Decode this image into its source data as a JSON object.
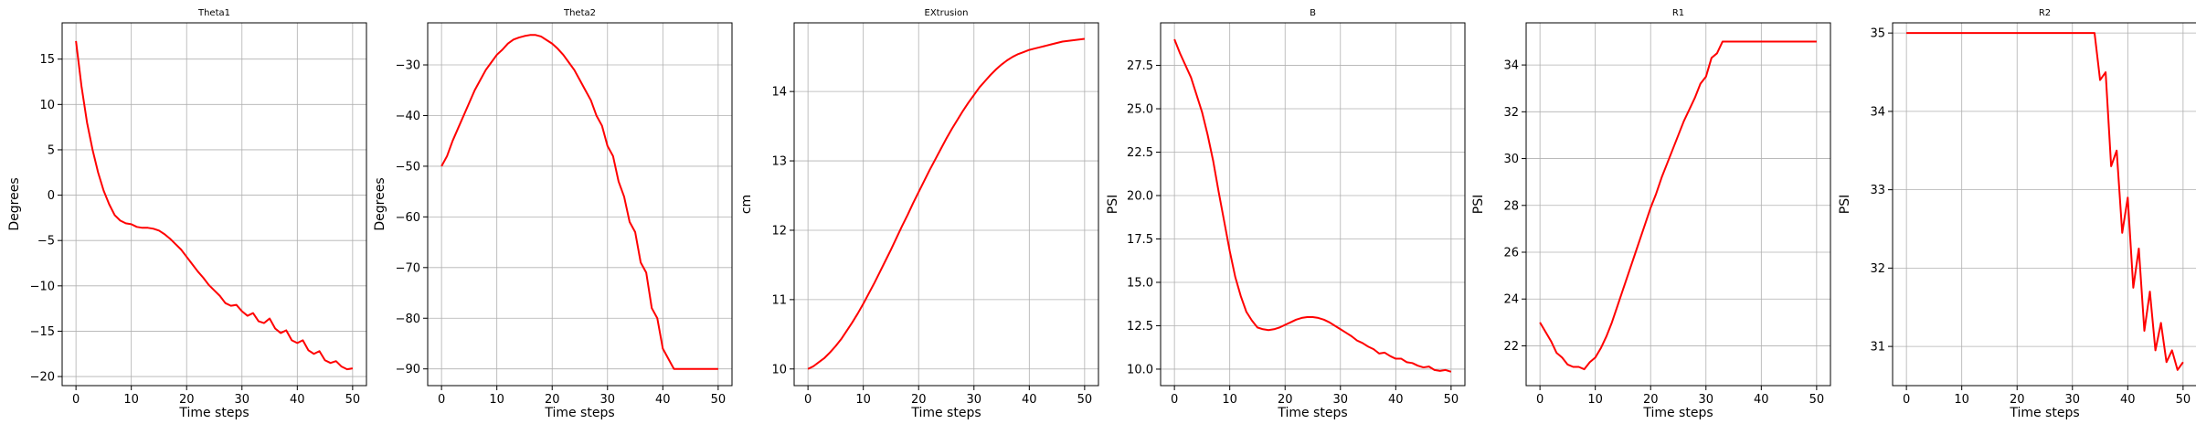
{
  "chart_data": [
    {
      "type": "line",
      "title": "Theta1",
      "xlabel": "Time steps",
      "ylabel": "Degrees",
      "xlim": [
        -2.5,
        52.5
      ],
      "ylim": [
        -21,
        19
      ],
      "xticks": [
        0,
        10,
        20,
        30,
        40,
        50
      ],
      "xtick_labels": [
        "0",
        "10",
        "20",
        "30",
        "40",
        "50"
      ],
      "yticks": [
        -20,
        -15,
        -10,
        -5,
        0,
        5,
        10,
        15
      ],
      "ytick_labels": [
        "−20",
        "−15",
        "−10",
        "−5",
        "0",
        "5",
        "10",
        "15"
      ],
      "grid": true,
      "color": "#ff0000",
      "series": [
        {
          "x": [
            0,
            1,
            2,
            3,
            4,
            5,
            6,
            7,
            8,
            9,
            10,
            11,
            12,
            13,
            14,
            15,
            16,
            17,
            18,
            19,
            20,
            21,
            22,
            23,
            24,
            25,
            26,
            27,
            28,
            29,
            30,
            31,
            32,
            33,
            34,
            35,
            36,
            37,
            38,
            39,
            40,
            41,
            42,
            43,
            44,
            45,
            46,
            47,
            48,
            49,
            50
          ],
          "values": [
            17,
            12,
            8,
            5,
            2.5,
            0.5,
            -1,
            -2.2,
            -2.8,
            -3.1,
            -3.2,
            -3.5,
            -3.6,
            -3.6,
            -3.7,
            -3.9,
            -4.3,
            -4.8,
            -5.4,
            -6,
            -6.8,
            -7.6,
            -8.4,
            -9.1,
            -9.9,
            -10.5,
            -11.1,
            -11.9,
            -12.2,
            -12.1,
            -12.8,
            -13.3,
            -13.0,
            -13.9,
            -14.1,
            -13.6,
            -14.7,
            -15.2,
            -14.9,
            -16.0,
            -16.3,
            -16.0,
            -17.1,
            -17.5,
            -17.2,
            -18.2,
            -18.5,
            -18.3,
            -18.9,
            -19.2,
            -19.1
          ]
        }
      ]
    },
    {
      "type": "line",
      "title": "Theta2",
      "xlabel": "Time steps",
      "ylabel": "Degrees",
      "xlim": [
        -2.5,
        52.5
      ],
      "ylim": [
        -93.3,
        -21.7
      ],
      "xticks": [
        0,
        10,
        20,
        30,
        40,
        50
      ],
      "xtick_labels": [
        "0",
        "10",
        "20",
        "30",
        "40",
        "50"
      ],
      "yticks": [
        -90,
        -80,
        -70,
        -60,
        -50,
        -40,
        -30
      ],
      "ytick_labels": [
        "−90",
        "−80",
        "−70",
        "−60",
        "−50",
        "−40",
        "−30"
      ],
      "grid": true,
      "color": "#ff0000",
      "series": [
        {
          "x": [
            0,
            1,
            2,
            3,
            4,
            5,
            6,
            7,
            8,
            9,
            10,
            11,
            12,
            13,
            14,
            15,
            16,
            17,
            18,
            19,
            20,
            21,
            22,
            23,
            24,
            25,
            26,
            27,
            28,
            29,
            30,
            31,
            32,
            33,
            34,
            35,
            36,
            37,
            38,
            39,
            40,
            41,
            42,
            43,
            44,
            45,
            46,
            47,
            48,
            49,
            50
          ],
          "values": [
            -50,
            -48,
            -45,
            -42.5,
            -40,
            -37.5,
            -35,
            -33,
            -31,
            -29.5,
            -28,
            -27,
            -25.8,
            -25,
            -24.6,
            -24.3,
            -24.1,
            -24.1,
            -24.4,
            -25.1,
            -25.8,
            -26.8,
            -28,
            -29.5,
            -31,
            -33,
            -35,
            -37,
            -40,
            -42,
            -46,
            -48,
            -53,
            -56,
            -61,
            -63,
            -69,
            -71,
            -78,
            -80,
            -86,
            -88,
            -90,
            -90,
            -90,
            -90,
            -90,
            -90,
            -90,
            -90,
            -90
          ]
        }
      ]
    },
    {
      "type": "line",
      "title": "EXtrusion",
      "xlabel": "Time steps",
      "ylabel": "cm",
      "xlim": [
        -2.5,
        52.5
      ],
      "ylim": [
        9.76,
        14.99
      ],
      "xticks": [
        0,
        10,
        20,
        30,
        40,
        50
      ],
      "xtick_labels": [
        "0",
        "10",
        "20",
        "30",
        "40",
        "50"
      ],
      "yticks": [
        10,
        11,
        12,
        13,
        14
      ],
      "ytick_labels": [
        "10",
        "11",
        "12",
        "13",
        "14"
      ],
      "grid": true,
      "color": "#ff0000",
      "series": [
        {
          "x": [
            0,
            1,
            2,
            3,
            4,
            5,
            6,
            7,
            8,
            9,
            10,
            11,
            12,
            13,
            14,
            15,
            16,
            17,
            18,
            19,
            20,
            21,
            22,
            23,
            24,
            25,
            26,
            27,
            28,
            29,
            30,
            31,
            32,
            33,
            34,
            35,
            36,
            37,
            38,
            39,
            40,
            41,
            42,
            43,
            44,
            45,
            46,
            47,
            48,
            49,
            50
          ],
          "values": [
            10,
            10.04,
            10.1,
            10.16,
            10.24,
            10.33,
            10.43,
            10.55,
            10.67,
            10.8,
            10.94,
            11.09,
            11.24,
            11.4,
            11.56,
            11.72,
            11.89,
            12.06,
            12.22,
            12.39,
            12.55,
            12.71,
            12.87,
            13.02,
            13.17,
            13.32,
            13.46,
            13.59,
            13.72,
            13.84,
            13.95,
            14.06,
            14.15,
            14.24,
            14.32,
            14.39,
            14.45,
            14.5,
            14.54,
            14.57,
            14.6,
            14.62,
            14.64,
            14.66,
            14.68,
            14.7,
            14.72,
            14.73,
            14.74,
            14.75,
            14.76
          ]
        }
      ]
    },
    {
      "type": "line",
      "title": "B",
      "xlabel": "Time steps",
      "ylabel": "PSI",
      "xlim": [
        -2.5,
        52.5
      ],
      "ylim": [
        9.05,
        29.95
      ],
      "xticks": [
        0,
        10,
        20,
        30,
        40,
        50
      ],
      "xtick_labels": [
        "0",
        "10",
        "20",
        "30",
        "40",
        "50"
      ],
      "yticks": [
        10,
        12.5,
        15,
        17.5,
        20,
        22.5,
        25,
        27.5
      ],
      "ytick_labels": [
        "10.0",
        "12.5",
        "15.0",
        "17.5",
        "20.0",
        "22.5",
        "25.0",
        "27.5"
      ],
      "grid": true,
      "color": "#ff0000",
      "series": [
        {
          "x": [
            0,
            1,
            2,
            3,
            4,
            5,
            6,
            7,
            8,
            9,
            10,
            11,
            12,
            13,
            14,
            15,
            16,
            17,
            18,
            19,
            20,
            21,
            22,
            23,
            24,
            25,
            26,
            27,
            28,
            29,
            30,
            31,
            32,
            33,
            34,
            35,
            36,
            37,
            38,
            39,
            40,
            41,
            42,
            43,
            44,
            45,
            46,
            47,
            48,
            49,
            50
          ],
          "values": [
            29,
            28.2,
            27.5,
            26.8,
            25.8,
            24.8,
            23.5,
            22,
            20.2,
            18.5,
            16.8,
            15.3,
            14.2,
            13.3,
            12.8,
            12.4,
            12.3,
            12.25,
            12.3,
            12.4,
            12.55,
            12.7,
            12.85,
            12.95,
            13,
            13,
            12.95,
            12.85,
            12.7,
            12.5,
            12.3,
            12.1,
            11.9,
            11.65,
            11.5,
            11.3,
            11.15,
            10.9,
            10.95,
            10.75,
            10.6,
            10.6,
            10.4,
            10.35,
            10.2,
            10.1,
            10.15,
            9.95,
            9.9,
            9.95,
            9.85
          ]
        }
      ]
    },
    {
      "type": "line",
      "title": "R1",
      "xlabel": "Time steps",
      "ylabel": "PSI",
      "xlim": [
        -2.5,
        52.5
      ],
      "ylim": [
        20.3,
        35.8
      ],
      "xticks": [
        0,
        10,
        20,
        30,
        40,
        50
      ],
      "xtick_labels": [
        "0",
        "10",
        "20",
        "30",
        "40",
        "50"
      ],
      "yticks": [
        22,
        24,
        26,
        28,
        30,
        32,
        34
      ],
      "ytick_labels": [
        "22",
        "24",
        "26",
        "28",
        "30",
        "32",
        "34"
      ],
      "grid": true,
      "color": "#ff0000",
      "series": [
        {
          "x": [
            0,
            1,
            2,
            3,
            4,
            5,
            6,
            7,
            8,
            9,
            10,
            11,
            12,
            13,
            14,
            15,
            16,
            17,
            18,
            19,
            20,
            21,
            22,
            23,
            24,
            25,
            26,
            27,
            28,
            29,
            30,
            31,
            32,
            33,
            34,
            35,
            36,
            37,
            38,
            39,
            40,
            41,
            42,
            43,
            44,
            45,
            46,
            47,
            48,
            49,
            50
          ],
          "values": [
            23,
            22.6,
            22.2,
            21.7,
            21.5,
            21.2,
            21.1,
            21.1,
            21.0,
            21.3,
            21.5,
            21.9,
            22.4,
            23,
            23.7,
            24.4,
            25.1,
            25.8,
            26.5,
            27.2,
            27.9,
            28.5,
            29.2,
            29.8,
            30.4,
            31,
            31.6,
            32.1,
            32.6,
            33.2,
            33.5,
            34.3,
            34.5,
            35,
            35,
            35,
            35,
            35,
            35,
            35,
            35,
            35,
            35,
            35,
            35,
            35,
            35,
            35,
            35,
            35,
            35
          ]
        }
      ]
    },
    {
      "type": "line",
      "title": "R2",
      "xlabel": "Time steps",
      "ylabel": "PSI",
      "xlim": [
        -2.5,
        52.5
      ],
      "ylim": [
        30.5,
        35.13
      ],
      "xticks": [
        0,
        10,
        20,
        30,
        40,
        50
      ],
      "xtick_labels": [
        "0",
        "10",
        "20",
        "30",
        "40",
        "50"
      ],
      "yticks": [
        31,
        32,
        33,
        34,
        35
      ],
      "ytick_labels": [
        "31",
        "32",
        "33",
        "34",
        "35"
      ],
      "grid": true,
      "color": "#ff0000",
      "series": [
        {
          "x": [
            0,
            1,
            2,
            3,
            4,
            5,
            6,
            7,
            8,
            9,
            10,
            11,
            12,
            13,
            14,
            15,
            16,
            17,
            18,
            19,
            20,
            21,
            22,
            23,
            24,
            25,
            26,
            27,
            28,
            29,
            30,
            31,
            32,
            33,
            34,
            35,
            36,
            37,
            38,
            39,
            40,
            41,
            42,
            43,
            44,
            45,
            46,
            47,
            48,
            49,
            50
          ],
          "values": [
            35,
            35,
            35,
            35,
            35,
            35,
            35,
            35,
            35,
            35,
            35,
            35,
            35,
            35,
            35,
            35,
            35,
            35,
            35,
            35,
            35,
            35,
            35,
            35,
            35,
            35,
            35,
            35,
            35,
            35,
            35,
            35,
            35,
            35,
            35,
            34.4,
            34.5,
            33.3,
            33.5,
            32.45,
            32.9,
            31.75,
            32.25,
            31.2,
            31.7,
            30.95,
            31.3,
            30.8,
            30.95,
            30.7,
            30.8
          ]
        }
      ]
    }
  ]
}
